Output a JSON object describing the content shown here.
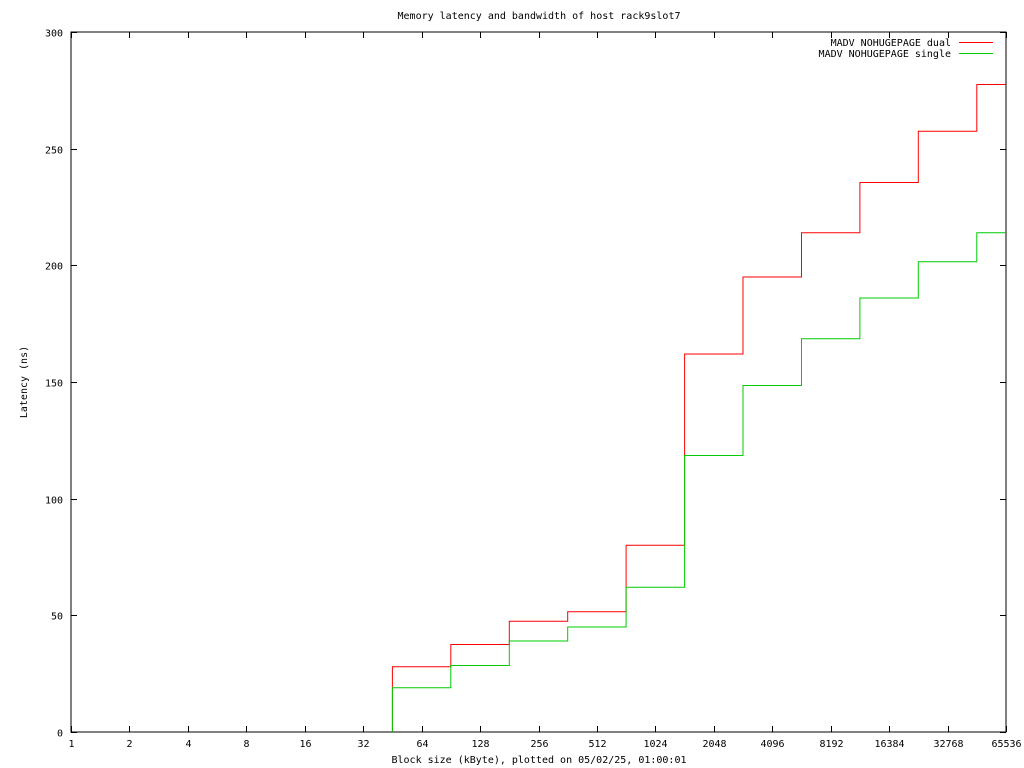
{
  "chart_data": {
    "type": "line",
    "step": true,
    "title": "Memory latency and bandwidth of host rack9slot7",
    "xlabel": "Block size (kByte), plotted on 05/02/25, 01:00:01",
    "ylabel": "Latency (ns)",
    "x_scale": "log2",
    "xlim": [
      1,
      65536
    ],
    "ylim": [
      0,
      300
    ],
    "x_ticks": [
      1,
      2,
      4,
      8,
      16,
      32,
      64,
      128,
      256,
      512,
      1024,
      2048,
      4096,
      8192,
      16384,
      32768,
      65536
    ],
    "x_tick_labels": [
      "1",
      "2",
      "4",
      "8",
      "16",
      "32",
      "64",
      "128",
      "256",
      "512",
      "1024",
      "2048",
      "4096",
      "8192",
      "16384",
      "32768",
      "65536"
    ],
    "y_ticks": [
      0,
      50,
      100,
      150,
      200,
      250,
      300
    ],
    "y_tick_labels": [
      "0",
      "50",
      "100",
      "150",
      "200",
      "250",
      "300"
    ],
    "grid": false,
    "legend_position": "top-right",
    "series": [
      {
        "name": "MADV NOHUGEPAGE dual",
        "color": "#ff0000",
        "x": [
          45.25,
          90.5,
          181,
          362,
          724,
          1448,
          2896,
          5793,
          11585,
          23170,
          46341,
          65536
        ],
        "y": [
          28,
          37.5,
          47.5,
          51.5,
          80,
          162,
          195,
          214,
          235.5,
          257.5,
          277.5,
          277.5
        ]
      },
      {
        "name": "MADV NOHUGEPAGE single",
        "color": "#00cc00",
        "x": [
          45.25,
          90.5,
          181,
          362,
          724,
          1448,
          2896,
          5793,
          11585,
          23170,
          46341,
          65536
        ],
        "y": [
          19,
          28.5,
          39,
          45,
          62,
          118.5,
          148.5,
          168.5,
          186,
          201.5,
          214,
          214
        ]
      }
    ]
  }
}
